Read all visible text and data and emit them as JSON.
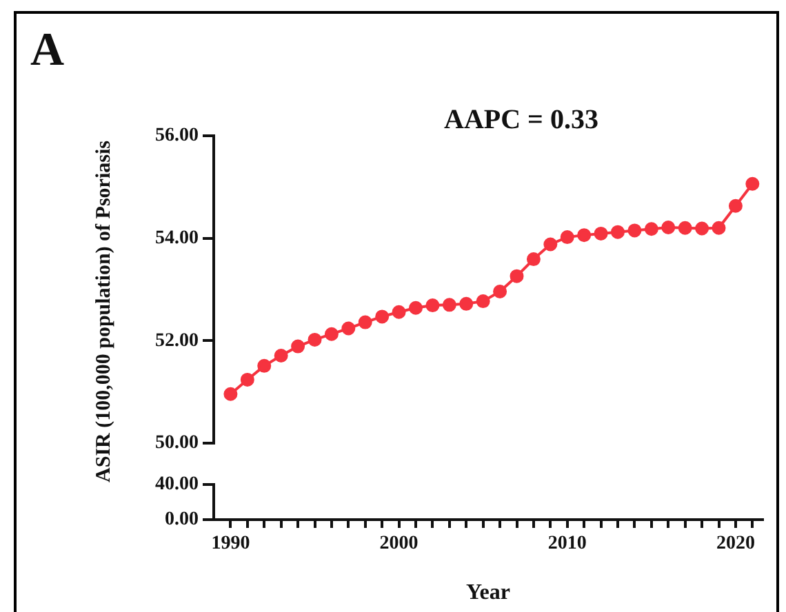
{
  "chart_data": [
    {
      "type": "line",
      "ylabel": "ASIR (100,000 population) of Psoriasis",
      "annotations": [
        "A",
        "AAPC = 0.33"
      ],
      "x": [
        1990,
        1991,
        1992,
        1993,
        1994,
        1995,
        1996,
        1997,
        1998,
        1999,
        2000,
        2001,
        2002,
        2003,
        2004,
        2005,
        2006,
        2007,
        2008,
        2009,
        2010,
        2011,
        2012,
        2013,
        2014,
        2015,
        2016,
        2017,
        2018,
        2019,
        2020,
        2021
      ],
      "values": [
        50.96,
        51.24,
        51.51,
        51.71,
        51.89,
        52.02,
        52.13,
        52.24,
        52.36,
        52.47,
        52.56,
        52.64,
        52.69,
        52.7,
        52.72,
        52.77,
        52.96,
        53.26,
        53.59,
        53.88,
        54.02,
        54.06,
        54.09,
        54.12,
        54.15,
        54.18,
        54.21,
        54.2,
        54.19,
        54.2,
        54.63,
        55.06
      ],
      "color": "#f5333f",
      "marker": "circle",
      "line_style": "solid",
      "grid": false,
      "legend": false,
      "ylim": [
        50,
        56
      ],
      "yticks": [
        {
          "value": 50,
          "label": "50.00"
        },
        {
          "value": 52,
          "label": "52.00"
        },
        {
          "value": 54,
          "label": "54.00"
        },
        {
          "value": 56,
          "label": "56.00"
        }
      ],
      "tick_labels": "y"
    },
    {
      "type": "line",
      "xlabel": "Year",
      "grid": false,
      "legend": false,
      "xlim": [
        1989,
        2021.6
      ],
      "ylim": [
        0,
        40
      ],
      "xticks": [
        1990,
        {
          "value": 1991,
          "label": null
        },
        {
          "value": 1992,
          "label": null
        },
        {
          "value": 1993,
          "label": null
        },
        {
          "value": 1994,
          "label": null
        },
        {
          "value": 1995,
          "label": null
        },
        {
          "value": 1996,
          "label": null
        },
        {
          "value": 1997,
          "label": null
        },
        {
          "value": 1998,
          "label": null
        },
        {
          "value": 1999,
          "label": null
        },
        2000,
        {
          "value": 2001,
          "label": null
        },
        {
          "value": 2002,
          "label": null
        },
        {
          "value": 2003,
          "label": null
        },
        {
          "value": 2004,
          "label": null
        },
        {
          "value": 2005,
          "label": null
        },
        {
          "value": 2006,
          "label": null
        },
        {
          "value": 2007,
          "label": null
        },
        {
          "value": 2008,
          "label": null
        },
        {
          "value": 2009,
          "label": null
        },
        2010,
        {
          "value": 2011,
          "label": null
        },
        {
          "value": 2012,
          "label": null
        },
        {
          "value": 2013,
          "label": null
        },
        {
          "value": 2014,
          "label": null
        },
        {
          "value": 2015,
          "label": null
        },
        {
          "value": 2016,
          "label": null
        },
        {
          "value": 2017,
          "label": null
        },
        {
          "value": 2018,
          "label": null
        },
        {
          "value": 2019,
          "label": null
        },
        2020,
        {
          "value": 2021,
          "label": null
        }
      ],
      "yticks": [
        {
          "value": 0,
          "label": "0.00"
        },
        {
          "value": 40,
          "label": "40.00"
        }
      ]
    }
  ]
}
